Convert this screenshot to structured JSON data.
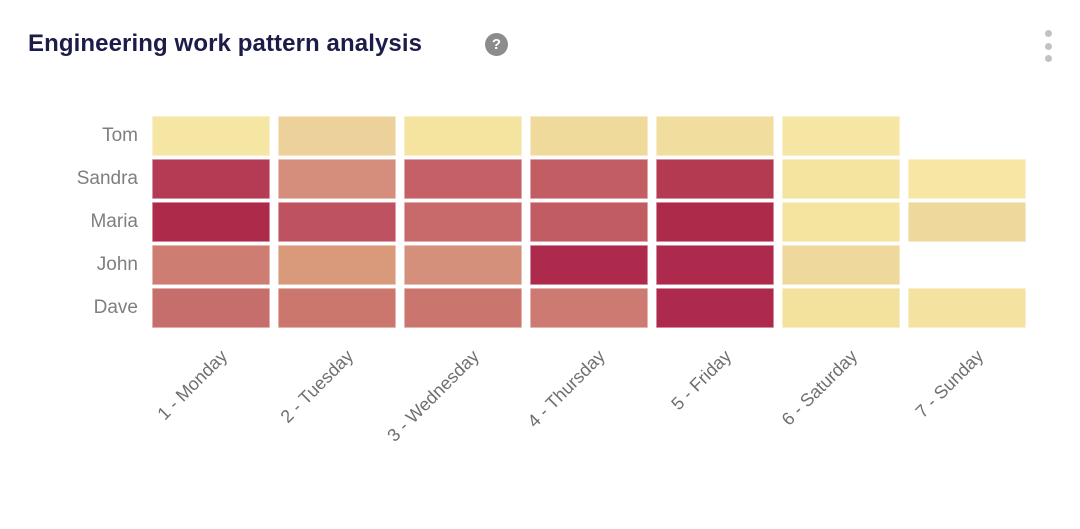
{
  "header": {
    "title": "Engineering work pattern analysis",
    "help_glyph": "?"
  },
  "icons": {
    "help": "question-mark-circle",
    "menu": "kebab-vertical-dots"
  },
  "colors": {
    "title_text": "#1B1C48",
    "axis_label_text": "#6F6F6F",
    "row_label_text": "#7F7F7F",
    "help_badge_bg": "#8C8C8C",
    "kebab_dots": "#C2C2C2",
    "background": "#FFFFFF"
  },
  "chart_data": {
    "type": "heatmap",
    "title": "Engineering work pattern analysis",
    "xlabel": "",
    "ylabel": "",
    "x_tick_labels": [
      "1 - Monday",
      "2 - Tuesday",
      "3 - Wednesday",
      "4 - Thursday",
      "5 - Friday",
      "6 - Saturday",
      "7 - Sunday"
    ],
    "y_tick_labels": [
      "Tom",
      "Sandra",
      "Maria",
      "John",
      "Dave"
    ],
    "value_encoding": "color intensity (no numeric labels shown; light yellow = low, dark crimson = high)",
    "palette_range": {
      "low": "#F6E6A3",
      "mid": "#D5907C",
      "high": "#AD2A4B"
    },
    "legend": false,
    "grid": false,
    "cell_colors": [
      [
        "#F6E6A3",
        "#ECD19A",
        "#F5E4A0",
        "#EFDA9C",
        "#F1DE9E",
        "#F6E6A3",
        null
      ],
      [
        "#B43B53",
        "#D58E7B",
        "#C46066",
        "#C25D63",
        "#B43A51",
        "#F5E4A0",
        "#F7E6A4"
      ],
      [
        "#AD2A4B",
        "#BF5260",
        "#C8696C",
        "#C25C63",
        "#AD2A4B",
        "#F5E4A0",
        "#EFD89B"
      ],
      [
        "#CE7D73",
        "#D9997B",
        "#D5907C",
        "#AD2A4C",
        "#AD2A4C",
        "#EFD89B",
        null
      ],
      [
        "#C66E6C",
        "#CB776E",
        "#CA756E",
        "#CD7B72",
        "#AD2A4C",
        "#F3E19E",
        "#F4E2A0"
      ]
    ],
    "missing_cells": [
      [
        "Tom",
        "7 - Sunday"
      ],
      [
        "John",
        "7 - Sunday"
      ]
    ]
  }
}
